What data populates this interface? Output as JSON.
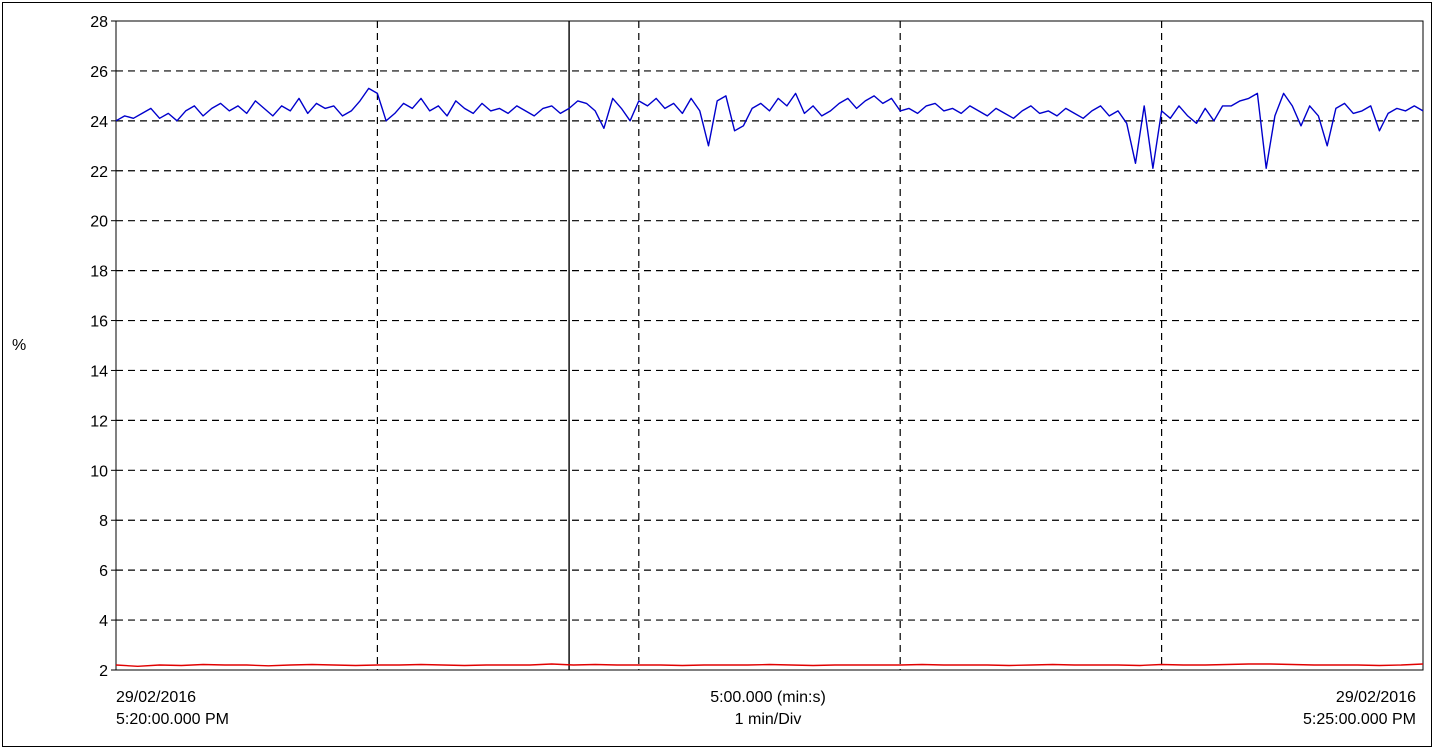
{
  "chart_data": {
    "type": "line",
    "title": "",
    "ylabel": "%",
    "ylim": [
      2,
      28
    ],
    "yticks": [
      "2",
      "4",
      "6",
      "8",
      "10",
      "12",
      "14",
      "16",
      "18",
      "20",
      "22",
      "24",
      "26",
      "28"
    ],
    "x_start": {
      "date": "29/02/2016",
      "time": "5:20:00.000 PM"
    },
    "x_end": {
      "date": "29/02/2016",
      "time": "5:25:00.000 PM"
    },
    "x_center": {
      "span": "5:00.000 (min:s)",
      "division": "1 min/Div"
    },
    "x_divisions": 5,
    "x_range_seconds": [
      0,
      300
    ],
    "cursor_x_seconds": 104,
    "grid": true,
    "colors": {
      "series_blue": "#0000cc",
      "series_red": "#e00000",
      "grid": "#000000"
    },
    "series": [
      {
        "color": "#0000cc",
        "x": [
          0,
          2,
          4,
          6,
          8,
          10,
          12,
          14,
          16,
          18,
          20,
          22,
          24,
          26,
          28,
          30,
          32,
          34,
          36,
          38,
          40,
          42,
          44,
          46,
          48,
          50,
          52,
          54,
          56,
          58,
          60,
          62,
          64,
          66,
          68,
          70,
          72,
          74,
          76,
          78,
          80,
          82,
          84,
          86,
          88,
          90,
          92,
          94,
          96,
          98,
          100,
          102,
          104,
          106,
          108,
          110,
          112,
          114,
          116,
          118,
          120,
          122,
          124,
          126,
          128,
          130,
          132,
          134,
          136,
          138,
          140,
          142,
          144,
          146,
          148,
          150,
          152,
          154,
          156,
          158,
          160,
          162,
          164,
          166,
          168,
          170,
          172,
          174,
          176,
          178,
          180,
          182,
          184,
          186,
          188,
          190,
          192,
          194,
          196,
          198,
          200,
          202,
          204,
          206,
          208,
          210,
          212,
          214,
          216,
          218,
          220,
          222,
          224,
          226,
          228,
          230,
          232,
          234,
          236,
          238,
          240,
          242,
          244,
          246,
          248,
          250,
          252,
          254,
          256,
          258,
          260,
          262,
          264,
          266,
          268,
          270,
          272,
          274,
          276,
          278,
          280,
          282,
          284,
          286,
          288,
          290,
          292,
          294,
          296,
          298,
          300
        ],
        "values": [
          24.0,
          24.2,
          24.1,
          24.3,
          24.5,
          24.1,
          24.3,
          24.0,
          24.4,
          24.6,
          24.2,
          24.5,
          24.7,
          24.4,
          24.6,
          24.3,
          24.8,
          24.5,
          24.2,
          24.6,
          24.4,
          24.9,
          24.3,
          24.7,
          24.5,
          24.6,
          24.2,
          24.4,
          24.8,
          25.3,
          25.1,
          24.0,
          24.3,
          24.7,
          24.5,
          24.9,
          24.4,
          24.6,
          24.2,
          24.8,
          24.5,
          24.3,
          24.7,
          24.4,
          24.5,
          24.3,
          24.6,
          24.4,
          24.2,
          24.5,
          24.6,
          24.3,
          24.5,
          24.8,
          24.7,
          24.4,
          23.7,
          24.9,
          24.5,
          24.0,
          24.8,
          24.6,
          24.9,
          24.5,
          24.7,
          24.3,
          24.9,
          24.4,
          23.0,
          24.8,
          25.0,
          23.6,
          23.8,
          24.5,
          24.7,
          24.4,
          24.9,
          24.6,
          25.1,
          24.3,
          24.6,
          24.2,
          24.4,
          24.7,
          24.9,
          24.5,
          24.8,
          25.0,
          24.7,
          24.9,
          24.4,
          24.5,
          24.3,
          24.6,
          24.7,
          24.4,
          24.5,
          24.3,
          24.6,
          24.4,
          24.2,
          24.5,
          24.3,
          24.1,
          24.4,
          24.6,
          24.3,
          24.4,
          24.2,
          24.5,
          24.3,
          24.1,
          24.4,
          24.6,
          24.2,
          24.4,
          23.9,
          22.3,
          24.6,
          22.1,
          24.4,
          24.1,
          24.6,
          24.2,
          23.9,
          24.5,
          24.0,
          24.6,
          24.6,
          24.8,
          24.9,
          25.1,
          22.1,
          24.2,
          25.1,
          24.6,
          23.8,
          24.6,
          24.2,
          23.0,
          24.5,
          24.7,
          24.3,
          24.4,
          24.6,
          23.6,
          24.3,
          24.5,
          24.4,
          24.6,
          24.4
        ],
        "name": ""
      },
      {
        "color": "#e00000",
        "x": [
          0,
          5,
          10,
          15,
          20,
          25,
          30,
          35,
          40,
          45,
          50,
          55,
          60,
          65,
          70,
          75,
          80,
          85,
          90,
          95,
          100,
          105,
          110,
          115,
          120,
          125,
          130,
          135,
          140,
          145,
          150,
          155,
          160,
          165,
          170,
          175,
          180,
          185,
          190,
          195,
          200,
          205,
          210,
          215,
          220,
          225,
          230,
          235,
          240,
          245,
          250,
          255,
          260,
          265,
          270,
          275,
          280,
          285,
          290,
          295,
          300
        ],
        "values": [
          2.2,
          2.15,
          2.2,
          2.18,
          2.22,
          2.2,
          2.2,
          2.17,
          2.2,
          2.22,
          2.2,
          2.18,
          2.2,
          2.2,
          2.22,
          2.2,
          2.18,
          2.2,
          2.2,
          2.2,
          2.24,
          2.2,
          2.22,
          2.2,
          2.2,
          2.2,
          2.18,
          2.2,
          2.2,
          2.2,
          2.22,
          2.2,
          2.18,
          2.2,
          2.2,
          2.2,
          2.2,
          2.22,
          2.2,
          2.2,
          2.2,
          2.18,
          2.2,
          2.22,
          2.2,
          2.2,
          2.2,
          2.18,
          2.22,
          2.2,
          2.2,
          2.22,
          2.24,
          2.24,
          2.22,
          2.2,
          2.2,
          2.2,
          2.18,
          2.2,
          2.24
        ],
        "name": ""
      }
    ]
  }
}
